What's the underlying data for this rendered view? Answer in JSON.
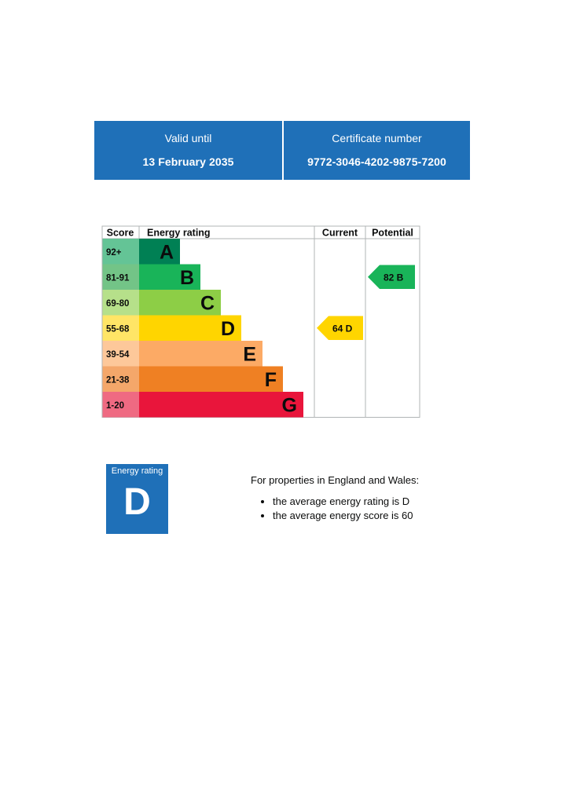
{
  "header": {
    "valid_label": "Valid until",
    "valid_date": "13 February 2035",
    "certificate_label": "Certificate number",
    "certificate_number": "9772-3046-4202-9875-7200"
  },
  "chart_data": {
    "type": "table",
    "columns": [
      "Score",
      "Energy rating",
      "Current",
      "Potential"
    ],
    "bands": [
      {
        "score": "92+",
        "letter": "A",
        "color": "#008054",
        "score_bg": "#64c496"
      },
      {
        "score": "81-91",
        "letter": "B",
        "color": "#19b459",
        "score_bg": "#73c487"
      },
      {
        "score": "69-80",
        "letter": "C",
        "color": "#8dce46",
        "score_bg": "#b6e08a"
      },
      {
        "score": "55-68",
        "letter": "D",
        "color": "#ffd500",
        "score_bg": "#ffe566"
      },
      {
        "score": "39-54",
        "letter": "E",
        "color": "#fcaa65",
        "score_bg": "#fdc89a"
      },
      {
        "score": "21-38",
        "letter": "F",
        "color": "#ef8023",
        "score_bg": "#f4a76a"
      },
      {
        "score": "1-20",
        "letter": "G",
        "color": "#e9153b",
        "score_bg": "#ef6a82"
      }
    ],
    "current": {
      "value": 64,
      "letter": "D",
      "label": "64  D",
      "color": "#ffd500"
    },
    "potential": {
      "value": 82,
      "letter": "B",
      "label": "82  B",
      "color": "#19b459"
    }
  },
  "badge": {
    "label": "Energy rating",
    "letter": "D"
  },
  "info": {
    "intro": "For properties in England and Wales:",
    "items": [
      "the average energy rating is D",
      "the average energy score is 60"
    ]
  }
}
